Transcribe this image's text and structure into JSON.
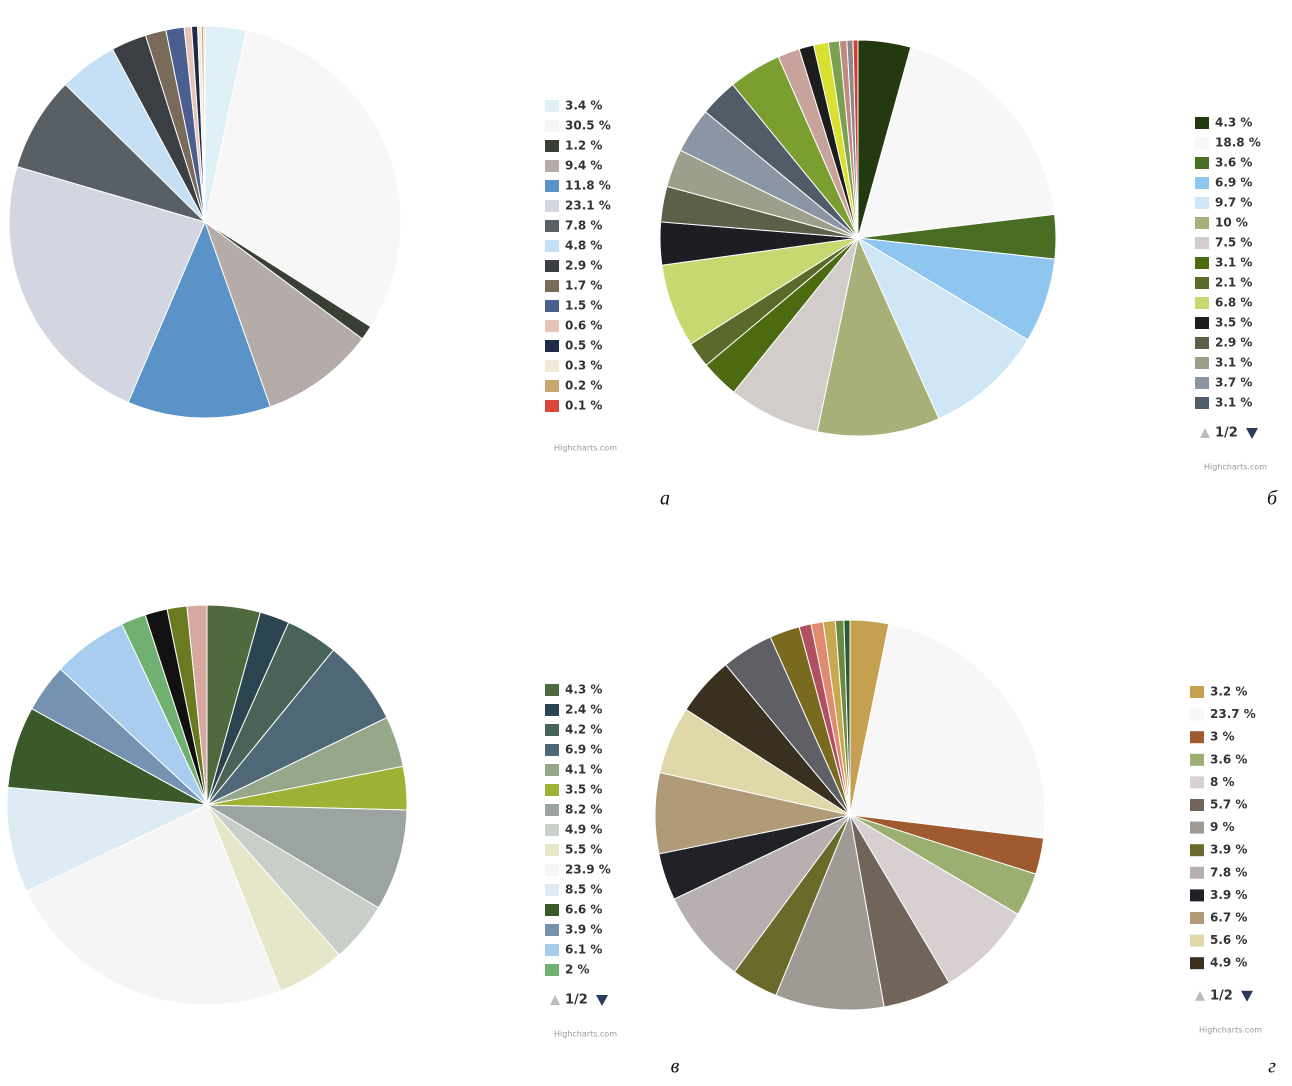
{
  "chart_data": [
    {
      "type": "pie",
      "caption": "а",
      "credits": "Highcharts.com",
      "values": [
        3.4,
        30.5,
        1.2,
        9.4,
        11.8,
        23.1,
        7.8,
        4.8,
        2.9,
        1.7,
        1.5,
        0.6,
        0.5,
        0.3,
        0.2,
        0.1
      ],
      "value_labels": [
        "3.4 %",
        "30.5 %",
        "1.2 %",
        "9.4 %",
        "11.8 %",
        "23.1 %",
        "7.8 %",
        "4.8 %",
        "2.9 %",
        "1.7 %",
        "1.5 %",
        "0.6 %",
        "0.5 %",
        "0.3 %",
        "0.2 %",
        "0.1 %"
      ],
      "colors": [
        "#dff0f7",
        "#f7f7f7",
        "#3a3f35",
        "#b5aba8",
        "#5b93c8",
        "#d3d6e0",
        "#596065",
        "#c5dff5",
        "#3b3f44",
        "#7a6a5a",
        "#4a5f8f",
        "#e8c3b8",
        "#1d2a4a",
        "#f2e9d8",
        "#c8a870",
        "#d9473b"
      ]
    },
    {
      "type": "pie",
      "caption": "б",
      "credits": "Highcharts.com",
      "pagination": "1/2",
      "values": [
        4.3,
        18.8,
        3.6,
        6.9,
        9.7,
        10,
        7.5,
        3.1,
        2.1,
        6.8,
        3.5,
        2.9,
        3.1,
        3.7,
        3.1,
        4.3,
        1.8,
        1.2,
        1.2,
        0.9,
        0.6,
        0.5,
        0.4
      ],
      "value_labels": [
        "4.3 %",
        "18.8 %",
        "3.6 %",
        "6.9 %",
        "9.7 %",
        "10 %",
        "7.5 %",
        "3.1 %",
        "2.1 %",
        "6.8 %",
        "3.5 %",
        "2.9 %",
        "3.1 %",
        "3.7 %",
        "3.1 %",
        null,
        null,
        null,
        null,
        null,
        null,
        null,
        null
      ],
      "colors": [
        "#233a10",
        "#f7f7f7",
        "#486d23",
        "#8ec6f0",
        "#cfe6f7",
        "#a8b07a",
        "#d2ccca",
        "#4c6a10",
        "#5a6a2a",
        "#c8d870",
        "#1d1d22",
        "#5c6049",
        "#9ca08a",
        "#8b95a3",
        "#515c69",
        "#7a9e30",
        "#c8a39c",
        "#1d1d1d",
        "#d8e030",
        "#7aa050",
        "#c08a80",
        "#8a8a8a",
        "#d04030"
      ]
    },
    {
      "type": "pie",
      "caption": "в",
      "credits": "Highcharts.com",
      "pagination": "1/2",
      "values": [
        4.3,
        2.4,
        4.2,
        6.9,
        4.1,
        3.5,
        8.2,
        4.9,
        5.5,
        23.9,
        8.5,
        6.6,
        3.9,
        6.1,
        2,
        1.8,
        1.6,
        1.6
      ],
      "value_labels": [
        "4.3 %",
        "2.4 %",
        "4.2 %",
        "6.9 %",
        "4.1 %",
        "3.5 %",
        "8.2 %",
        "4.9 %",
        "5.5 %",
        "23.9 %",
        "8.5 %",
        "6.6 %",
        "3.9 %",
        "6.1 %",
        "2 %",
        null,
        null,
        null
      ],
      "colors": [
        "#4f6a3e",
        "#2b4550",
        "#486358",
        "#4f6878",
        "#95a88a",
        "#9fb235",
        "#9ba4a0",
        "#c8cfc8",
        "#e6e6c8",
        "#f5f5f5",
        "#ddebf5",
        "#3a5a2a",
        "#7593b0",
        "#a8cdee",
        "#70b070",
        "#111111",
        "#6a7a20",
        "#d8a8a0"
      ]
    },
    {
      "type": "pie",
      "caption": "г",
      "credits": "Highcharts.com",
      "pagination": "1/2",
      "values": [
        3.2,
        23.7,
        3,
        3.6,
        8,
        5.7,
        9,
        3.9,
        7.8,
        3.9,
        6.7,
        5.6,
        4.9,
        4.3,
        2.5,
        1,
        1,
        1,
        0.7,
        0.5
      ],
      "value_labels": [
        "3.2 %",
        "23.7 %",
        "3 %",
        "3.6 %",
        "8 %",
        "5.7 %",
        "9 %",
        "3.9 %",
        "7.8 %",
        "3.9 %",
        "6.7 %",
        "5.6 %",
        "4.9 %",
        null,
        null,
        null,
        null,
        null,
        null,
        null
      ],
      "colors": [
        "#c4a050",
        "#f7f7f7",
        "#a05a30",
        "#9bb070",
        "#d8d0d0",
        "#706558",
        "#a09a95",
        "#6a6a2a",
        "#b8b0b0",
        "#202228",
        "#b09a78",
        "#e0d8a8",
        "#3a3020",
        "#5f6066",
        "#7a6a20",
        "#b05060",
        "#e08a70",
        "#c8a850",
        "#6a8a40",
        "#2a5a3a"
      ]
    }
  ]
}
